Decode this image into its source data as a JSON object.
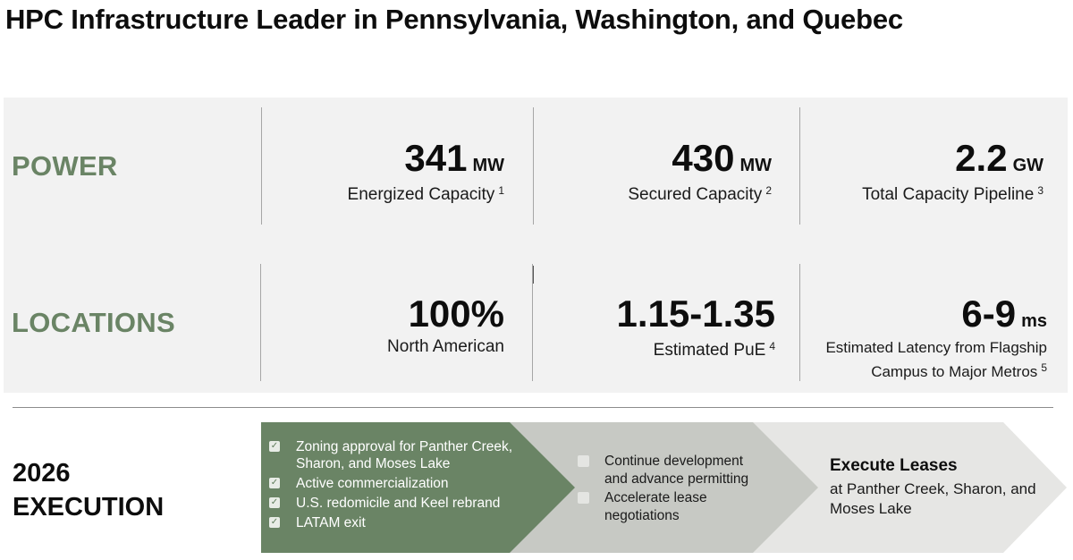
{
  "title": "HPC Infrastructure Leader in Pennsylvania, Washington, and Quebec",
  "colors": {
    "accent_green": "#6a8465",
    "arrow_mid": "#c7c9c4",
    "arrow_light": "#e6e6e4",
    "panel": "#f2f2f2"
  },
  "power": {
    "label": "POWER",
    "metrics": [
      {
        "value": "341",
        "unit": "MW",
        "desc": "Energized Capacity",
        "note": "1"
      },
      {
        "value": "430",
        "unit": "MW",
        "desc": "Secured Capacity",
        "note": "2"
      },
      {
        "value": "2.2",
        "unit": "GW",
        "desc": "Total Capacity Pipeline",
        "note": "3"
      }
    ]
  },
  "locations": {
    "label": "LOCATIONS",
    "metrics": [
      {
        "value": "100%",
        "desc": "North American"
      },
      {
        "value": "1.15-1.35",
        "desc": "Estimated PuE",
        "note": "4"
      },
      {
        "value": "6-9",
        "unit": "ms",
        "desc_line1": "Estimated Latency from Flagship",
        "desc_line2": "Campus to Major Metros",
        "note": "5"
      }
    ]
  },
  "execution": {
    "label_line1": "2026",
    "label_line2": "EXECUTION",
    "completed": [
      "Zoning approval for Panther Creek, Sharon, and Moses Lake",
      "Active commercialization",
      "U.S. redomicile and Keel rebrand",
      "LATAM exit"
    ],
    "in_progress": [
      "Continue development and advance permitting",
      "Accelerate lease negotiations"
    ],
    "final_head": "Execute Leases",
    "final_body": "at Panther Creek, Sharon, and Moses Lake"
  }
}
